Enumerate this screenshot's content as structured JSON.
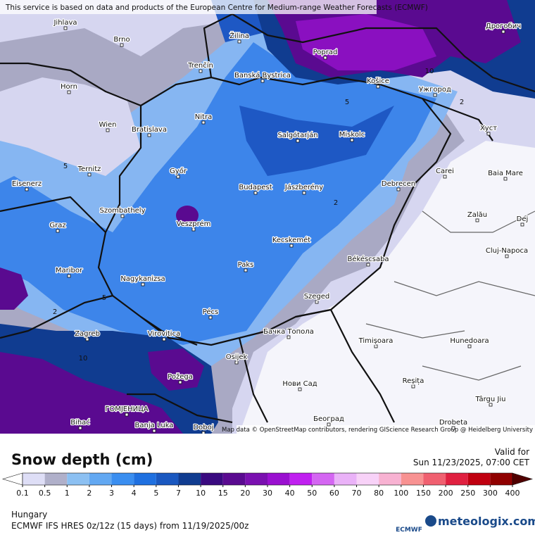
{
  "top_credit": "This service is based on data and products of the European Centre for Medium-range Weather Forecasts (ECMWF)",
  "map_credit": "Map data © OpenStreetMap contributors, rendering GIScience Research Group @ Heidelberg University",
  "cities": [
    "Jihlava",
    "Brno",
    "Žilina",
    "Poprad",
    "Дрогобич",
    "Trenčín",
    "Banská Bystrica",
    "Košice",
    "Ужгород",
    "Horn",
    "Nitra",
    "Wien",
    "Bratislava",
    "Хуст",
    "Salgótarján",
    "Miskolc",
    "Ternitz",
    "Győr",
    "Carei",
    "Baia Mare",
    "Eisenerz",
    "Budapest",
    "Jászberény",
    "Debrecen",
    "Szombathely",
    "Graz",
    "Veszprém",
    "Zalău",
    "Dej",
    "Kecskemét",
    "Cluj-Napoca",
    "Békéscsaba",
    "Paks",
    "Maribor",
    "Nagykanizsa",
    "Szeged",
    "Pécs",
    "Zagreb",
    "Virovitica",
    "Бачка Топола",
    "Timișoara",
    "Hunedoara",
    "Osijek",
    "Požega",
    "Нови Сад",
    "Reșița",
    "Târgu Jiu",
    "ГОМЈЕНИЦА",
    "Bihać",
    "Banja Luka",
    "Doboj",
    "Београд",
    "Drobeta"
  ],
  "contour_labels": [
    2,
    2,
    2,
    5,
    5,
    5,
    10,
    10
  ],
  "legend": {
    "title": "Snow depth (cm)",
    "ticks": [
      0.1,
      0.5,
      1,
      2,
      3,
      4,
      5,
      7,
      10,
      15,
      20,
      30,
      40,
      50,
      60,
      70,
      80,
      100,
      150,
      200,
      250,
      300,
      400
    ],
    "colors": [
      "#dedef6",
      "#b0b0ca",
      "#8cc0f2",
      "#62a8f2",
      "#3a8ef0",
      "#1f70e0",
      "#1a58c0",
      "#103c90",
      "#3a0a80",
      "#5a0a90",
      "#7a10b0",
      "#9a10d0",
      "#c020f0",
      "#d466f2",
      "#eab2f8",
      "#f8d2f8",
      "#f8b2d2",
      "#f89292",
      "#f06070",
      "#e02040",
      "#c00010",
      "#900000"
    ],
    "under_color": "#ffffff",
    "over_color": "#500000"
  },
  "valid": {
    "label": "Valid for",
    "time": "Sun 11/23/2025, 07:00 CET"
  },
  "region": "Hungary",
  "model": "ECMWF IFS HRES 0z/12z (15 days) from  11/19/2025/00z",
  "logos": [
    "ECMWF",
    "meteologix.com"
  ]
}
